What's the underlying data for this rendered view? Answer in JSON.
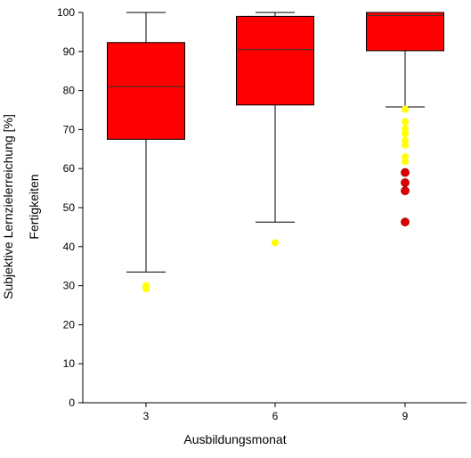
{
  "chart_data": {
    "type": "boxplot",
    "title": "",
    "xlabel": "Ausbildungsmonat",
    "ylabel": [
      "Subjektive Lernzielerreichung [%]",
      "Fertigkeiten"
    ],
    "ylim": [
      0,
      100
    ],
    "yticks": [
      0,
      10,
      20,
      30,
      40,
      50,
      60,
      70,
      80,
      90,
      100
    ],
    "categories": [
      "3",
      "6",
      "9"
    ],
    "grid": false,
    "box_color": "#ff0000",
    "outlier_color": "#ffff00",
    "extreme_color": "#dd0000",
    "boxes": [
      {
        "category": "3",
        "whisker_low": 33.5,
        "q1": 67.5,
        "median": 81,
        "q3": 92.3,
        "whisker_high": 100,
        "outliers": [
          29.2,
          30
        ],
        "extremes": []
      },
      {
        "category": "6",
        "whisker_low": 46.3,
        "q1": 76.3,
        "median": 90.5,
        "q3": 99,
        "whisker_high": 100,
        "outliers": [
          41
        ],
        "extremes": []
      },
      {
        "category": "9",
        "whisker_low": 75.8,
        "q1": 90.2,
        "median": 99.2,
        "q3": 100,
        "whisker_high": 100,
        "outliers": [
          75.2,
          72,
          70.2,
          69,
          67.2,
          66,
          63,
          61.8
        ],
        "extremes": [
          59,
          56.4,
          54.3,
          46.3
        ]
      }
    ]
  }
}
